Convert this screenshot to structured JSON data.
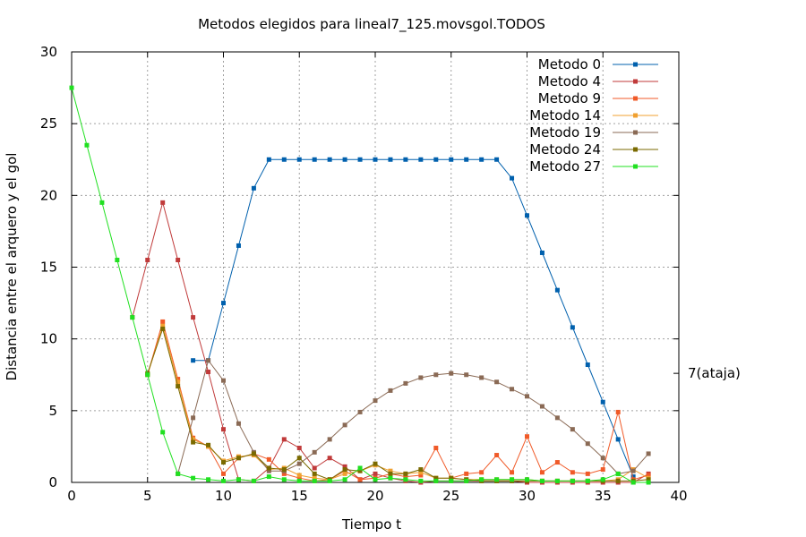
{
  "chart_data": {
    "type": "line",
    "title": "Metodos elegidos para lineal7_125.movsgol.TODOS",
    "xlabel": "Tiempo t",
    "ylabel": "Distancia entre el arquero y el gol",
    "xlim": [
      0,
      40
    ],
    "ylim": [
      0,
      30
    ],
    "xticks": [
      0,
      5,
      10,
      15,
      20,
      25,
      30,
      35,
      40
    ],
    "yticks": [
      0,
      5,
      10,
      15,
      20,
      25,
      30
    ],
    "grid": true,
    "legend_position": "top-right",
    "annotation": "7(ataja)",
    "annotation_y": 7.6,
    "series": [
      {
        "name": "Metodo 0",
        "color": "#0060ad",
        "x": [
          8,
          9,
          10,
          11,
          12,
          13,
          14,
          15,
          16,
          17,
          18,
          19,
          20,
          21,
          22,
          23,
          24,
          25,
          26,
          27,
          28,
          29,
          30,
          31,
          32,
          33,
          34,
          35,
          36,
          37
        ],
        "y": [
          8.5,
          8.5,
          12.5,
          16.5,
          20.5,
          22.5,
          22.5,
          22.5,
          22.5,
          22.5,
          22.5,
          22.5,
          22.5,
          22.5,
          22.5,
          22.5,
          22.5,
          22.5,
          22.5,
          22.5,
          22.5,
          21.2,
          18.6,
          16.0,
          13.4,
          10.8,
          8.2,
          5.6,
          3.0,
          0.4
        ]
      },
      {
        "name": "Metodo 4",
        "color": "#c03a3a",
        "x": [
          4,
          5,
          6,
          7,
          8,
          9,
          10,
          11,
          12,
          13,
          14,
          15,
          16,
          17,
          18,
          19,
          20,
          21,
          22,
          23,
          24,
          25,
          26,
          27,
          28,
          29,
          30,
          31,
          32,
          33,
          34,
          35,
          36,
          37,
          38
        ],
        "y": [
          11.5,
          15.5,
          19.5,
          15.5,
          11.5,
          7.7,
          3.7,
          0.2,
          0.1,
          1.0,
          3.0,
          2.4,
          1.0,
          1.7,
          1.1,
          0.2,
          0.6,
          0.3,
          0.1,
          0.0,
          0.1,
          0.1,
          0.1,
          0.1,
          0.1,
          0.1,
          0.0,
          0.0,
          0.0,
          0.0,
          0.0,
          0.0,
          0.0,
          0.0,
          0.6
        ]
      },
      {
        "name": "Metodo 9",
        "color": "#f05a28",
        "x": [
          5,
          6,
          7,
          8,
          9,
          10,
          11,
          12,
          13,
          14,
          15,
          16,
          17,
          18,
          19,
          20,
          21,
          22,
          23,
          24,
          25,
          26,
          27,
          28,
          29,
          30,
          31,
          32,
          33,
          34,
          35,
          36,
          37,
          38
        ],
        "y": [
          7.5,
          11.2,
          7.2,
          3.1,
          2.5,
          0.6,
          1.7,
          2.0,
          1.6,
          0.6,
          0.3,
          0.1,
          0.2,
          0.8,
          0.2,
          0.3,
          0.6,
          0.4,
          0.5,
          2.4,
          0.3,
          0.6,
          0.7,
          1.9,
          0.7,
          3.2,
          0.7,
          1.4,
          0.7,
          0.6,
          0.9,
          4.9,
          0.2,
          0.5
        ]
      },
      {
        "name": "Metodo 14",
        "color": "#f0a030",
        "x": [
          5,
          6,
          7,
          8,
          9,
          10,
          11,
          12,
          13,
          14,
          15,
          16,
          17,
          18,
          19,
          20,
          21,
          22,
          23,
          24,
          25,
          26,
          27,
          28,
          29,
          30,
          31,
          32,
          33,
          34,
          35,
          36,
          37,
          38
        ],
        "y": [
          7.5,
          10.9,
          7.0,
          3.0,
          2.5,
          1.5,
          1.8,
          1.9,
          0.9,
          1.0,
          0.5,
          0.3,
          0.2,
          0.6,
          0.8,
          1.2,
          0.8,
          0.6,
          0.7,
          0.3,
          0.3,
          0.2,
          0.2,
          0.2,
          0.2,
          0.2,
          0.1,
          0.1,
          0.1,
          0.1,
          0.1,
          0.2,
          0.9,
          0.3
        ]
      },
      {
        "name": "Metodo 19",
        "color": "#8a6a55",
        "x": [
          7,
          8,
          9,
          10,
          11,
          12,
          13,
          14,
          15,
          16,
          17,
          18,
          19,
          20,
          21,
          22,
          23,
          24,
          25,
          26,
          27,
          28,
          29,
          30,
          31,
          32,
          33,
          34,
          35,
          36,
          37,
          38
        ],
        "y": [
          0.6,
          4.5,
          8.5,
          7.1,
          4.1,
          2.1,
          0.8,
          0.8,
          1.3,
          2.1,
          3.0,
          4.0,
          4.9,
          5.7,
          6.4,
          6.9,
          7.3,
          7.5,
          7.6,
          7.5,
          7.3,
          7.0,
          6.5,
          6.0,
          5.3,
          4.5,
          3.7,
          2.7,
          1.7,
          0.6,
          0.8,
          2.0
        ]
      },
      {
        "name": "Metodo 24",
        "color": "#7a6a00",
        "x": [
          5,
          6,
          7,
          8,
          9,
          10,
          11,
          12,
          13,
          14,
          15,
          16,
          17,
          18,
          19,
          20,
          21,
          22,
          23,
          24,
          25,
          26,
          27,
          28,
          29,
          30,
          31,
          32,
          33,
          34,
          35,
          36,
          37,
          38
        ],
        "y": [
          7.6,
          10.7,
          6.7,
          2.8,
          2.6,
          1.4,
          1.7,
          2.0,
          1.0,
          0.9,
          1.7,
          0.6,
          0.2,
          0.9,
          0.8,
          1.3,
          0.6,
          0.6,
          0.9,
          0.3,
          0.3,
          0.2,
          0.1,
          0.1,
          0.1,
          0.1,
          0.1,
          0.1,
          0.1,
          0.1,
          0.1,
          0.1,
          0.1,
          0.2
        ]
      },
      {
        "name": "Metodo 27",
        "color": "#20e020",
        "x": [
          0,
          1,
          2,
          3,
          4,
          5,
          6,
          7,
          8,
          9,
          10,
          11,
          12,
          13,
          14,
          15,
          16,
          17,
          18,
          19,
          20,
          21,
          22,
          23,
          24,
          25,
          26,
          27,
          28,
          29,
          30,
          31,
          32,
          33,
          34,
          35,
          36,
          37,
          38
        ],
        "y": [
          27.5,
          23.5,
          19.5,
          15.5,
          11.5,
          7.5,
          3.5,
          0.6,
          0.3,
          0.2,
          0.1,
          0.2,
          0.1,
          0.4,
          0.2,
          0.1,
          0.1,
          0.1,
          0.2,
          1.0,
          0.2,
          0.3,
          0.2,
          0.1,
          0.1,
          0.1,
          0.1,
          0.2,
          0.2,
          0.2,
          0.2,
          0.1,
          0.1,
          0.1,
          0.1,
          0.2,
          0.6,
          0.0,
          0.0
        ]
      }
    ]
  }
}
